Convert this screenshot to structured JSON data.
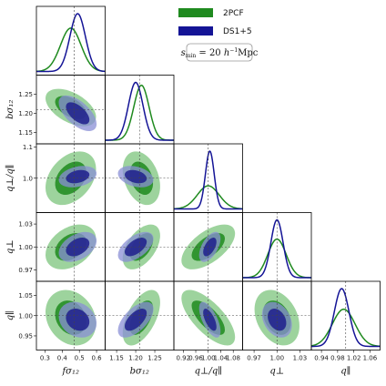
{
  "chart_data": {
    "type": "corner",
    "parameters": [
      {
        "label": "fσ₁₂",
        "range": [
          0.25,
          0.65
        ],
        "ticks": [
          "0.3",
          "0.4",
          "0.5",
          "0.6"
        ],
        "tick_values": [
          0.3,
          0.4,
          0.5,
          0.6
        ],
        "fiducial": 0.47
      },
      {
        "label": "bσ₁₂",
        "range": [
          1.12,
          1.3
        ],
        "ticks": [
          "1.15",
          "1.20",
          "1.25"
        ],
        "tick_values": [
          1.15,
          1.2,
          1.25
        ],
        "fiducial": 1.21
      },
      {
        "label": "q⊥/q∥",
        "range": [
          0.89,
          1.11
        ],
        "ticks": [
          "0.92",
          "0.96",
          "1.00",
          "1.04",
          "1.08"
        ],
        "tick_values": [
          0.92,
          0.96,
          1.0,
          1.04,
          1.08
        ],
        "fiducial": 1.0
      },
      {
        "label": "q⊥",
        "range": [
          0.955,
          1.045
        ],
        "ticks": [
          "0.97",
          "1.00",
          "1.03"
        ],
        "tick_values": [
          0.97,
          1.0,
          1.03
        ],
        "fiducial": 1.0
      },
      {
        "label": "q∥",
        "range": [
          0.915,
          1.085
        ],
        "ticks": [
          "0.94",
          "0.98",
          "1.02",
          "1.06"
        ],
        "tick_values": [
          0.94,
          0.98,
          1.02,
          1.06
        ],
        "fiducial": 1.0
      }
    ],
    "row_tick_labels": [
      null,
      {
        "ticks": [
          "1.15",
          "1.20",
          "1.25"
        ],
        "tick_values": [
          1.15,
          1.2,
          1.25
        ]
      },
      {
        "ticks": [
          "1.0",
          "1.1"
        ],
        "tick_values": [
          1.0,
          1.1
        ]
      },
      {
        "ticks": [
          "0.97",
          "1.00",
          "1.03"
        ],
        "tick_values": [
          0.97,
          1.0,
          1.03
        ]
      },
      {
        "ticks": [
          "0.95",
          "1.00",
          "1.05"
        ],
        "tick_values": [
          0.95,
          1.0,
          1.05
        ]
      }
    ],
    "series": [
      {
        "name": "2PCF",
        "color": "#1f8a1f",
        "fill_outer": "#7cc47c",
        "fill_inner": "#1f8a1f",
        "mean": [
          0.45,
          1.215,
          1.0,
          1.0,
          0.995
        ],
        "sigma": [
          0.06,
          0.02,
          0.035,
          0.012,
          0.028
        ],
        "correlations": [
          [
            1,
            -0.5,
            0.35,
            0.35,
            -0.2
          ],
          [
            -0.5,
            1,
            -0.3,
            0.5,
            0.55
          ],
          [
            0.35,
            -0.3,
            1,
            0.6,
            -0.7
          ],
          [
            0.35,
            0.5,
            0.6,
            1,
            -0.3
          ],
          [
            -0.2,
            0.55,
            -0.7,
            -0.3,
            1
          ]
        ]
      },
      {
        "name": "DS1+5",
        "color": "#141496",
        "fill_outer": "#8a8fd6",
        "fill_inner": "#1e1e8c",
        "mean": [
          0.49,
          1.2,
          1.005,
          1.0,
          0.99
        ],
        "sigma": [
          0.045,
          0.019,
          0.014,
          0.008,
          0.018
        ],
        "correlations": [
          [
            1,
            -0.6,
            0.3,
            0.4,
            -0.2
          ],
          [
            -0.6,
            1,
            -0.3,
            0.55,
            0.6
          ],
          [
            0.3,
            -0.3,
            1,
            0.55,
            -0.65
          ],
          [
            0.4,
            0.55,
            0.55,
            1,
            -0.3
          ],
          [
            -0.2,
            0.6,
            -0.65,
            -0.3,
            1
          ]
        ]
      }
    ],
    "legend": {
      "placement": "top-right",
      "entries": [
        "2PCF",
        "DS1+5"
      ]
    },
    "annotation": "s_min = 20 h⁻¹Mpc",
    "grid": false
  }
}
